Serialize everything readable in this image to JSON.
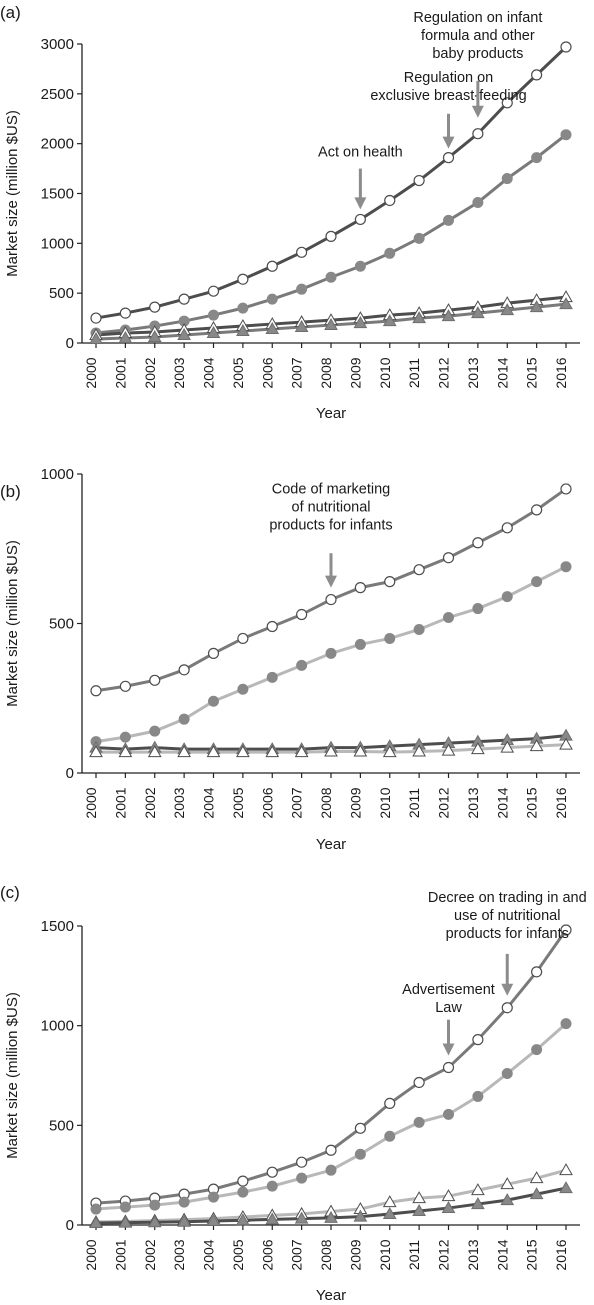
{
  "colors": {
    "dark": "#4d4d4d",
    "medium": "#7a7a7a",
    "light": "#b8b8b8",
    "marker_grey": "#888888",
    "arrow": "#8c8c8c"
  },
  "chart_data": [
    {
      "type": "line",
      "panel_label": "(a)",
      "xlabel": "Year",
      "ylabel": "Market size (million $US)",
      "x": [
        2000,
        2001,
        2002,
        2003,
        2004,
        2005,
        2006,
        2007,
        2008,
        2009,
        2010,
        2011,
        2012,
        2013,
        2014,
        2015,
        2016
      ],
      "ylim": [
        0,
        3000
      ],
      "yticks": [
        0,
        500,
        1000,
        1500,
        2000,
        2500,
        3000
      ],
      "grid": false,
      "series": [
        {
          "marker": "open-circle",
          "line": "dark",
          "values": [
            250,
            300,
            360,
            440,
            520,
            640,
            770,
            910,
            1070,
            1240,
            1430,
            1630,
            1860,
            2100,
            2410,
            2690,
            2970
          ]
        },
        {
          "marker": "filled-circle",
          "line": "medium",
          "values": [
            100,
            130,
            170,
            220,
            280,
            350,
            440,
            540,
            660,
            770,
            900,
            1050,
            1230,
            1410,
            1650,
            1860,
            2090
          ]
        },
        {
          "marker": "open-triangle",
          "line": "dark",
          "values": [
            80,
            100,
            110,
            130,
            150,
            170,
            190,
            210,
            230,
            250,
            280,
            300,
            330,
            360,
            400,
            430,
            460
          ]
        },
        {
          "marker": "filled-triangle",
          "line": "medium",
          "values": [
            40,
            50,
            60,
            80,
            100,
            120,
            140,
            160,
            180,
            200,
            220,
            250,
            270,
            300,
            330,
            360,
            390
          ]
        }
      ],
      "annotations": [
        {
          "lines": [
            "Act on health"
          ],
          "x": 2009,
          "target_y": 1280,
          "text_y": 1870,
          "arrow_top_y": 1750,
          "anchor": "middle"
        },
        {
          "lines": [
            "Regulation on",
            "exclusive breast-feeding"
          ],
          "x": 2012,
          "target_y": 1890,
          "text_y": 2620,
          "arrow_top_y": 2300,
          "anchor": "middle"
        },
        {
          "lines": [
            "Regulation on infant",
            "formula and other",
            "baby products"
          ],
          "x": 2013,
          "target_y": 2200,
          "text_y": 3220,
          "arrow_top_y": 2630,
          "anchor": "middle"
        }
      ]
    },
    {
      "type": "line",
      "panel_label": "(b)",
      "xlabel": "Year",
      "ylabel": "Market size (million $US)",
      "x": [
        2000,
        2001,
        2002,
        2003,
        2004,
        2005,
        2006,
        2007,
        2008,
        2009,
        2010,
        2011,
        2012,
        2013,
        2014,
        2015,
        2016
      ],
      "ylim": [
        0,
        1000
      ],
      "yticks": [
        0,
        500,
        1000
      ],
      "grid": false,
      "series": [
        {
          "marker": "open-circle",
          "line": "medium",
          "values": [
            275,
            290,
            310,
            345,
            400,
            450,
            490,
            530,
            580,
            620,
            640,
            680,
            720,
            770,
            820,
            880,
            950
          ]
        },
        {
          "marker": "filled-circle",
          "line": "light",
          "values": [
            105,
            120,
            140,
            180,
            240,
            280,
            320,
            360,
            400,
            430,
            450,
            480,
            520,
            550,
            590,
            640,
            690
          ]
        },
        {
          "marker": "filled-triangle",
          "line": "dark",
          "values": [
            85,
            80,
            85,
            80,
            80,
            80,
            80,
            80,
            85,
            85,
            90,
            95,
            100,
            105,
            110,
            115,
            125
          ]
        },
        {
          "marker": "open-triangle",
          "line": "light",
          "values": [
            70,
            70,
            70,
            70,
            70,
            70,
            70,
            70,
            72,
            72,
            70,
            72,
            75,
            80,
            85,
            90,
            95
          ]
        }
      ],
      "annotations": [
        {
          "lines": [
            "Code of marketing",
            "of nutritional",
            "products for infants"
          ],
          "x": 2008,
          "target_y": 600,
          "text_y": 935,
          "arrow_top_y": 735,
          "anchor": "middle"
        }
      ]
    },
    {
      "type": "line",
      "panel_label": "(c)",
      "xlabel": "Year",
      "ylabel": "Market size (million $US)",
      "x": [
        2000,
        2001,
        2002,
        2003,
        2004,
        2005,
        2006,
        2007,
        2008,
        2009,
        2010,
        2011,
        2012,
        2013,
        2014,
        2015,
        2016
      ],
      "ylim": [
        0,
        1500
      ],
      "yticks": [
        0,
        500,
        1000,
        1500
      ],
      "grid": false,
      "series": [
        {
          "marker": "open-circle",
          "line": "medium",
          "values": [
            110,
            120,
            135,
            155,
            180,
            220,
            265,
            315,
            375,
            485,
            610,
            715,
            790,
            930,
            1090,
            1270,
            1480
          ]
        },
        {
          "marker": "filled-circle",
          "line": "light",
          "values": [
            80,
            90,
            100,
            115,
            140,
            165,
            195,
            235,
            275,
            355,
            445,
            515,
            555,
            645,
            760,
            880,
            1010
          ]
        },
        {
          "marker": "open-triangle",
          "line": "light",
          "values": [
            15,
            18,
            22,
            27,
            32,
            40,
            48,
            56,
            68,
            80,
            115,
            135,
            145,
            175,
            205,
            235,
            275
          ]
        },
        {
          "marker": "filled-triangle",
          "line": "dark",
          "values": [
            10,
            12,
            14,
            16,
            20,
            24,
            28,
            32,
            36,
            42,
            55,
            70,
            85,
            105,
            125,
            155,
            185
          ]
        }
      ],
      "annotations": [
        {
          "lines": [
            "Advertisement",
            "Law"
          ],
          "x": 2012,
          "target_y": 820,
          "text_y": 1160,
          "arrow_top_y": 1030,
          "anchor": "middle"
        },
        {
          "lines": [
            "Decree on trading in and",
            "use of nutritional",
            "products for infants"
          ],
          "x": 2014,
          "target_y": 1120,
          "text_y": 1620,
          "arrow_top_y": 1360,
          "anchor": "middle"
        }
      ]
    }
  ]
}
